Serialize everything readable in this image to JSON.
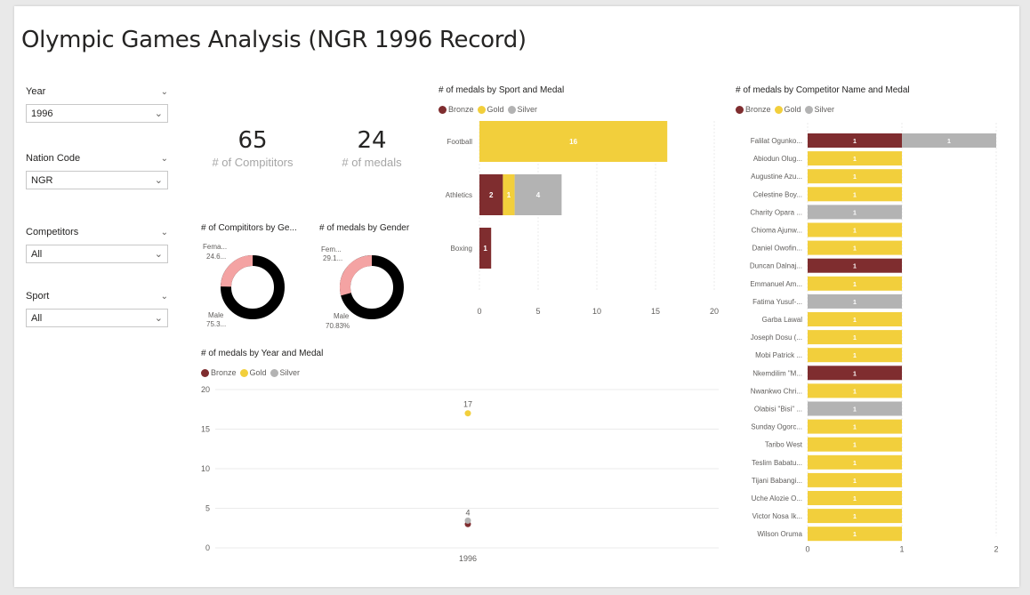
{
  "title": "Olympic Games Analysis (NGR 1996 Record)",
  "colors": {
    "bronze": "#7f2d2f",
    "gold": "#f2cf3c",
    "silver": "#b3b3b3",
    "female": "#f4a3a3",
    "male": "#000000"
  },
  "slicers": [
    {
      "label": "Year",
      "value": "1996"
    },
    {
      "label": "Nation Code",
      "value": "NGR"
    },
    {
      "label": "Competitors",
      "value": "All"
    },
    {
      "label": "Sport",
      "value": "All"
    }
  ],
  "kpis": [
    {
      "value": "65",
      "label": "# of Compititors"
    },
    {
      "value": "24",
      "label": "# of medals"
    }
  ],
  "donut_competitors": {
    "title": "# of Compititors by Ge...",
    "female_label": "Fema...",
    "female_value": "24.6...",
    "male_label": "Male",
    "male_value": "75.3...",
    "female_pct": 24.62
  },
  "donut_medals": {
    "title": "# of medals  by Gender",
    "female_label": "Fem...",
    "female_value": "29.1...",
    "male_label": "Male",
    "male_value": "70.83%",
    "female_pct": 29.17
  },
  "legend": {
    "bronze": "Bronze",
    "gold": "Gold",
    "silver": "Silver"
  },
  "chart_data": [
    {
      "type": "bar",
      "title": "# of medals  by Sport and Medal",
      "orientation": "horizontal-stacked",
      "categories": [
        "Football",
        "Athletics",
        "Boxing"
      ],
      "series": [
        {
          "name": "Bronze",
          "values": [
            0,
            2,
            1
          ]
        },
        {
          "name": "Gold",
          "values": [
            16,
            1,
            0
          ]
        },
        {
          "name": "Silver",
          "values": [
            0,
            4,
            0
          ]
        }
      ],
      "xlim": [
        0,
        20
      ],
      "xticks": [
        "0",
        "5",
        "10",
        "15",
        "20"
      ]
    },
    {
      "type": "bar",
      "title": "# of medals  by Competitor Name  and Medal",
      "orientation": "horizontal-stacked",
      "categories": [
        "Falilat Ogunko...",
        "Abiodun Olug...",
        "Augustine Azu...",
        "Celestine Boy...",
        "Charity Opara ...",
        "Chioma Ajunw...",
        "Daniel Owofin...",
        "Duncan Dalnaj...",
        "Emmanuel Am...",
        "Fatima Yusuf-...",
        "Garba Lawal",
        "Joseph Dosu (...",
        "Mobi Patrick ...",
        "Nkemdilim \"M...",
        "Nwankwo Chri...",
        "Olabisi \"Bisi\" ...",
        "Sunday Ogorc...",
        "Taribo West",
        "Teslim Babatu...",
        "Tijani Babangi...",
        "Uche Alozie O...",
        "Victor Nosa Ik...",
        "Wilson Oruma"
      ],
      "series": [
        {
          "name": "Bronze",
          "values": [
            1,
            0,
            0,
            0,
            0,
            0,
            0,
            1,
            0,
            0,
            0,
            0,
            0,
            1,
            0,
            0,
            0,
            0,
            0,
            0,
            0,
            0,
            0
          ]
        },
        {
          "name": "Gold",
          "values": [
            0,
            1,
            1,
            1,
            0,
            1,
            1,
            0,
            1,
            0,
            1,
            1,
            1,
            0,
            1,
            0,
            1,
            1,
            1,
            1,
            1,
            1,
            1
          ]
        },
        {
          "name": "Silver",
          "values": [
            1,
            0,
            0,
            0,
            1,
            0,
            0,
            0,
            0,
            1,
            0,
            0,
            0,
            0,
            0,
            1,
            0,
            0,
            0,
            0,
            0,
            0,
            0
          ]
        }
      ],
      "xlim": [
        0,
        2
      ],
      "xticks": [
        "0",
        "1",
        "2"
      ]
    },
    {
      "type": "scatter",
      "title": "# of medals  by Year and Medal",
      "x": [
        "1996"
      ],
      "series": [
        {
          "name": "Bronze",
          "values": [
            3
          ]
        },
        {
          "name": "Gold",
          "values": [
            17
          ]
        },
        {
          "name": "Silver",
          "values": [
            4
          ]
        }
      ],
      "data_labels": [
        "17",
        "4"
      ],
      "ylim": [
        0,
        20
      ],
      "yticks": [
        "0",
        "5",
        "10",
        "15",
        "20"
      ]
    }
  ]
}
